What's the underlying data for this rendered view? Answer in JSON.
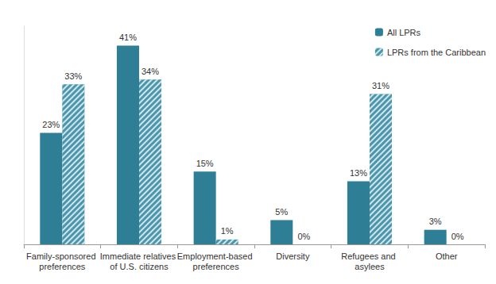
{
  "chart_data": {
    "type": "bar",
    "categories": [
      "Family-sponsored preferences",
      "Immediate relatives of U.S. citizens",
      "Employment-based preferences",
      "Diversity",
      "Refugees and asylees",
      "Other"
    ],
    "series": [
      {
        "name": "All LPRs",
        "color": "#2e7f96",
        "values": [
          23,
          41,
          15,
          5,
          13,
          3
        ],
        "value_labels": [
          "23%",
          "41%",
          "15%",
          "5%",
          "13%",
          "3%"
        ]
      },
      {
        "name": "LPRs from the Caribbean",
        "color": "#4a97ad",
        "values": [
          33,
          34,
          1,
          0,
          31,
          0
        ],
        "value_labels": [
          "33%",
          "34%",
          "1%",
          "0%",
          "31%",
          "0%"
        ]
      }
    ],
    "ylim": [
      0,
      45
    ],
    "data_labels": true,
    "tick_labels": "x",
    "legend": "top-right",
    "grid": false
  }
}
